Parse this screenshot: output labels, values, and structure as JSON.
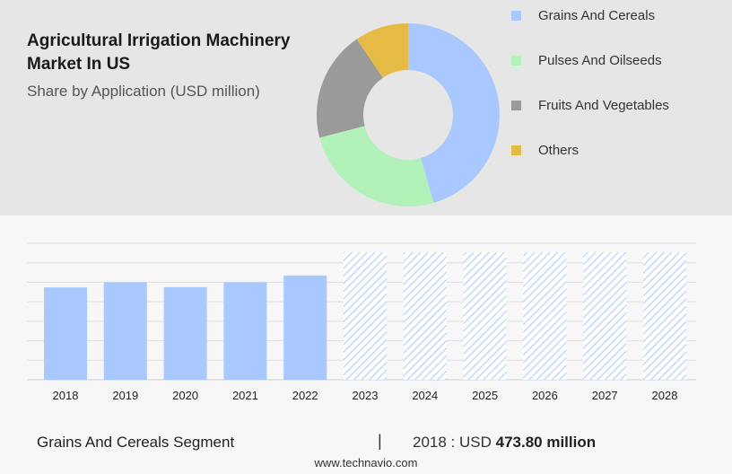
{
  "title": "Agricultural Irrigation Machinery Market In US",
  "subtitle": "Share by Application (USD million)",
  "chart_data": [
    {
      "type": "pie",
      "variant": "donut",
      "categories": [
        "Grains And Cereals",
        "Pulses And Oilseeds",
        "Fruits And Vegetables",
        "Others"
      ],
      "values": [
        45.5,
        25.5,
        19.5,
        9.5
      ],
      "colors": [
        "#a8c8ff",
        "#b2f2b8",
        "#9a9a9a",
        "#e6bb45"
      ],
      "legend": "right"
    },
    {
      "type": "bar",
      "categories": [
        "2018",
        "2019",
        "2020",
        "2021",
        "2022",
        "2023",
        "2024",
        "2025",
        "2026",
        "2027",
        "2028"
      ],
      "values": [
        473.8,
        500,
        475,
        500,
        535,
        null,
        null,
        null,
        null,
        null,
        null
      ],
      "forecast_categories": [
        "2023",
        "2024",
        "2025",
        "2026",
        "2027",
        "2028"
      ],
      "bar_color": "#a8c8ff",
      "ylim": [
        0,
        700
      ],
      "grid": true
    }
  ],
  "footer": {
    "segment_label": "Grains And Cereals Segment",
    "separator": "|",
    "value_prefix": "2018 : USD",
    "value_bold": "473.80 million"
  },
  "site": "www.technavio.com"
}
